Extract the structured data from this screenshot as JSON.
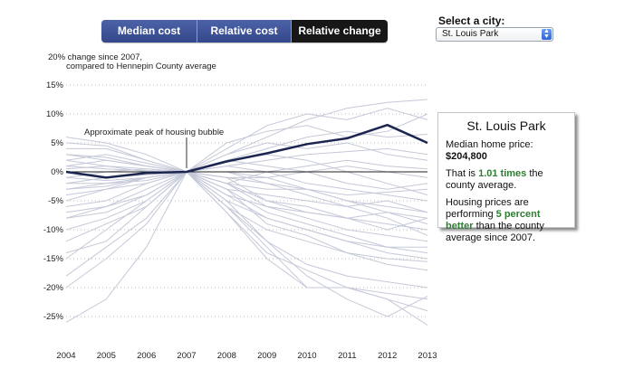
{
  "tabs": [
    {
      "label": "Median cost"
    },
    {
      "label": "Relative cost"
    },
    {
      "label": "Relative change",
      "active": true
    }
  ],
  "city_select": {
    "label": "Select a city:",
    "value": "St. Louis Park"
  },
  "tooltip": {
    "title": "St. Louis Park",
    "price_label": "Median home price:",
    "price_value": "$204,800",
    "ratio_pre": "That is",
    "ratio_value": "1.01 times",
    "ratio_post": "the county average.",
    "perf_pre": "Housing prices are performing",
    "perf_value": "5 percent better",
    "perf_post": "than the county average since 2007."
  },
  "colors": {
    "highlight": "#1b2550",
    "background_lines": "#c5c8d8",
    "zero_line": "#222222",
    "accent_green": "#2e7d32"
  },
  "chart_data": {
    "type": "line",
    "title": "20% change since 2007, compared to Hennepin County average",
    "xlabel": "",
    "ylabel": "",
    "x": [
      "2004",
      "2005",
      "2006",
      "2007",
      "2008",
      "2009",
      "2010",
      "2011",
      "2012",
      "2013"
    ],
    "ylim": [
      -27,
      20
    ],
    "yticks": [
      {
        "v": 20,
        "label": "20%"
      },
      {
        "v": 15,
        "label": "15%"
      },
      {
        "v": 10,
        "label": "10%"
      },
      {
        "v": 5,
        "label": "5%"
      },
      {
        "v": 0,
        "label": "0%"
      },
      {
        "v": -5,
        "label": "-5%"
      },
      {
        "v": -10,
        "label": "-10%"
      },
      {
        "v": -15,
        "label": "-15%"
      },
      {
        "v": -20,
        "label": "-20%"
      },
      {
        "v": -25,
        "label": "-25%"
      }
    ],
    "annotation": {
      "text": "Approximate peak of housing bubble",
      "x": "2007"
    },
    "highlight": {
      "name": "St. Louis Park",
      "values": [
        0,
        -1,
        -0.2,
        0,
        1.8,
        3.2,
        4.8,
        5.8,
        8.1,
        5
      ]
    },
    "series": [
      {
        "values": [
          -2,
          -1,
          -0.5,
          0,
          3,
          6,
          9,
          11,
          12,
          12.5
        ]
      },
      {
        "values": [
          2,
          3,
          1.5,
          0,
          4,
          8,
          10,
          9,
          11,
          9
        ]
      },
      {
        "values": [
          -4,
          -3,
          -1,
          0,
          5,
          7,
          8,
          6,
          7,
          10
        ]
      },
      {
        "values": [
          1,
          0.5,
          0.2,
          0,
          2,
          4,
          6,
          7,
          6,
          6.5
        ]
      },
      {
        "values": [
          -3,
          -2,
          -1.5,
          0,
          1,
          2,
          3,
          3.5,
          4,
          3
        ]
      },
      {
        "values": [
          3,
          2,
          1,
          0,
          3,
          5,
          4,
          5,
          3,
          2
        ]
      },
      {
        "values": [
          4,
          4,
          2,
          0,
          -2,
          0,
          1,
          2,
          1,
          0.5
        ]
      },
      {
        "values": [
          -1,
          0,
          0.5,
          0,
          -1,
          -1,
          0,
          1,
          0,
          -1
        ]
      },
      {
        "values": [
          5,
          4.5,
          2,
          0,
          -1,
          -2,
          -3,
          -4,
          -3.5,
          -3
        ]
      },
      {
        "values": [
          -6,
          -5,
          -2,
          0,
          -3,
          -4,
          -5,
          -6,
          -5,
          -7
        ]
      },
      {
        "values": [
          6,
          5,
          3,
          0,
          -2,
          -3,
          -3,
          -5,
          -6,
          -7
        ]
      },
      {
        "values": [
          -8,
          -6,
          -4,
          0,
          -1,
          -5,
          -6,
          -8,
          -9,
          -10
        ]
      },
      {
        "values": [
          2,
          1,
          0,
          0,
          -4,
          -6,
          -7,
          -8,
          -7,
          -8
        ]
      },
      {
        "values": [
          -5,
          -3,
          -2,
          0,
          0,
          -2,
          -4,
          -6,
          -8,
          -11
        ]
      },
      {
        "values": [
          -10,
          -8,
          -5,
          0,
          -2,
          -6,
          -8,
          -10,
          -11,
          -12
        ]
      },
      {
        "values": [
          -12,
          -9,
          -6,
          0,
          -3,
          -7,
          -9,
          -11,
          -13,
          -14
        ]
      },
      {
        "values": [
          1,
          2,
          1,
          0,
          -5,
          -8,
          -10,
          -12,
          -13,
          -13
        ]
      },
      {
        "values": [
          -15,
          -10,
          -5,
          0,
          -4,
          -8,
          -10,
          -12,
          -14,
          -15
        ]
      },
      {
        "values": [
          -2,
          -2,
          -1,
          0,
          -3,
          -9,
          -11,
          -14,
          -15,
          -15.5
        ]
      },
      {
        "values": [
          -18,
          -13,
          -8,
          0,
          -6,
          -10,
          -12,
          -14,
          -16,
          -17
        ]
      },
      {
        "values": [
          -20,
          -15,
          -9,
          0,
          -5,
          -12,
          -16,
          -18,
          -19,
          -20
        ]
      },
      {
        "values": [
          -8,
          -7,
          -4,
          0,
          -6,
          -13,
          -20,
          -20,
          -22,
          -24
        ]
      },
      {
        "values": [
          -26,
          -22,
          -13,
          0,
          -7,
          -14,
          -17,
          -20,
          -22,
          -26.5
        ]
      },
      {
        "values": [
          -3,
          -2.5,
          -1,
          0,
          -6,
          -12,
          -18,
          -22,
          -25,
          -21.5
        ]
      },
      {
        "values": [
          0,
          0,
          0,
          0,
          -7,
          -15,
          -20,
          -20,
          -21,
          -22
        ]
      },
      {
        "values": [
          -14,
          -12,
          -6,
          0,
          -2,
          -5,
          -7,
          -8,
          -10,
          -8
        ]
      },
      {
        "values": [
          0.5,
          1,
          0.5,
          0,
          1,
          0,
          -2,
          -3,
          -4,
          -5
        ]
      },
      {
        "values": [
          -7,
          -6,
          -3,
          0,
          2,
          1,
          0,
          -2,
          -3,
          -2
        ]
      },
      {
        "values": [
          3,
          2.5,
          1,
          0,
          2,
          3,
          2,
          0,
          -2,
          -4
        ]
      },
      {
        "values": [
          -1,
          -1.5,
          -1,
          0,
          0,
          -1,
          -3,
          -5,
          -7,
          -9
        ]
      }
    ]
  }
}
